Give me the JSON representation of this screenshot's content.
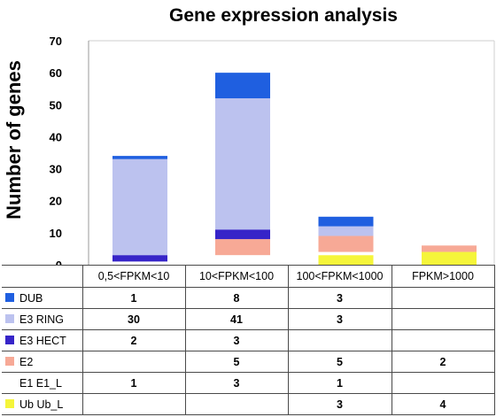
{
  "chart_data": {
    "type": "bar",
    "stacked": true,
    "title": "Gene expression analysis",
    "xlabel": "",
    "ylabel": "Number of genes",
    "ylim": [
      0,
      70
    ],
    "yticks": [
      0,
      10,
      20,
      30,
      40,
      50,
      60,
      70
    ],
    "grid": false,
    "legend": "data table below chart",
    "categories": [
      "0,5<FPKM<10",
      "10<FPKM<100",
      "100<FPKM<1000",
      "FPKM>1000"
    ],
    "series": [
      {
        "name": "Ub Ub_L",
        "color": "#f5f53a",
        "values": [
          null,
          null,
          3,
          4
        ]
      },
      {
        "name": "E1 E1_L",
        "color": "#ffffff",
        "values": [
          1,
          3,
          1,
          null
        ]
      },
      {
        "name": "E2",
        "color": "#f7a996",
        "values": [
          null,
          5,
          5,
          2
        ]
      },
      {
        "name": "E3 HECT",
        "color": "#3624c8",
        "values": [
          2,
          3,
          null,
          null
        ]
      },
      {
        "name": "E3 RING",
        "color": "#bcc2ef",
        "values": [
          30,
          41,
          3,
          null
        ]
      },
      {
        "name": "DUB",
        "color": "#1f5fe0",
        "values": [
          1,
          8,
          3,
          null
        ]
      }
    ],
    "table_row_order": [
      "DUB",
      "E3 RING",
      "E3 HECT",
      "E2",
      "E1 E1_L",
      "Ub Ub_L"
    ]
  }
}
